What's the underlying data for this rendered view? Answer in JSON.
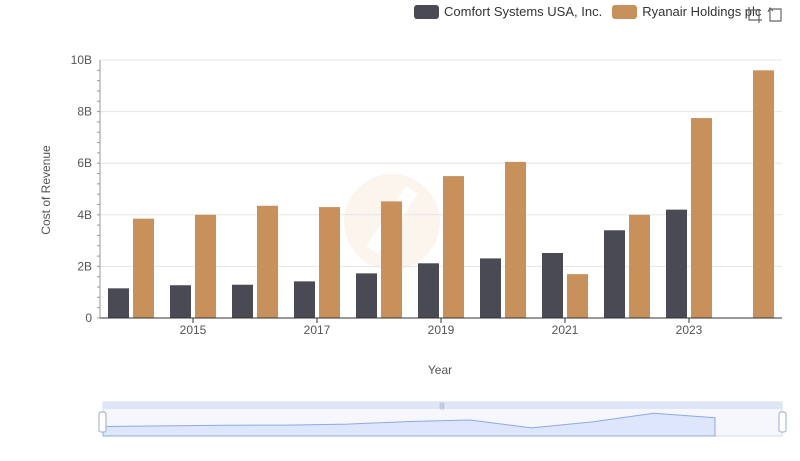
{
  "legend": {
    "series_a": "Comfort Systems USA, Inc.",
    "series_b": "Ryanair Holdings plc"
  },
  "colors": {
    "series_a": "#4a4a55",
    "series_b": "#c8915c",
    "grid": "#e6e6e6",
    "axis": "#333333",
    "zoom_fill": "#dde6fb",
    "zoom_line": "#8fa8e6"
  },
  "toolbox": {
    "zoom_icon": "zoom-select-icon",
    "restore_icon": "restore-icon"
  },
  "chart_data": {
    "type": "bar",
    "xlabel": "Year",
    "ylabel": "Cost of Revenue",
    "ylim": [
      0,
      10
    ],
    "unit": "B",
    "y_ticks": [
      "0",
      "2B",
      "4B",
      "6B",
      "8B",
      "10B"
    ],
    "categories": [
      "2014",
      "2015",
      "2016",
      "2017",
      "2018",
      "2019",
      "2020",
      "2021",
      "2022",
      "2023",
      "2024"
    ],
    "x_tick_labels": [
      "2015",
      "2017",
      "2019",
      "2021",
      "2023"
    ],
    "grid": true,
    "legend_position": "top-right",
    "series": [
      {
        "name": "Comfort Systems USA, Inc.",
        "values": [
          1.15,
          1.27,
          1.29,
          1.42,
          1.73,
          2.12,
          2.31,
          2.52,
          3.4,
          4.2,
          null
        ]
      },
      {
        "name": "Ryanair Holdings plc",
        "values": [
          3.85,
          4.0,
          4.35,
          4.3,
          4.52,
          5.5,
          6.05,
          1.7,
          4.0,
          7.75,
          9.6
        ]
      }
    ]
  }
}
